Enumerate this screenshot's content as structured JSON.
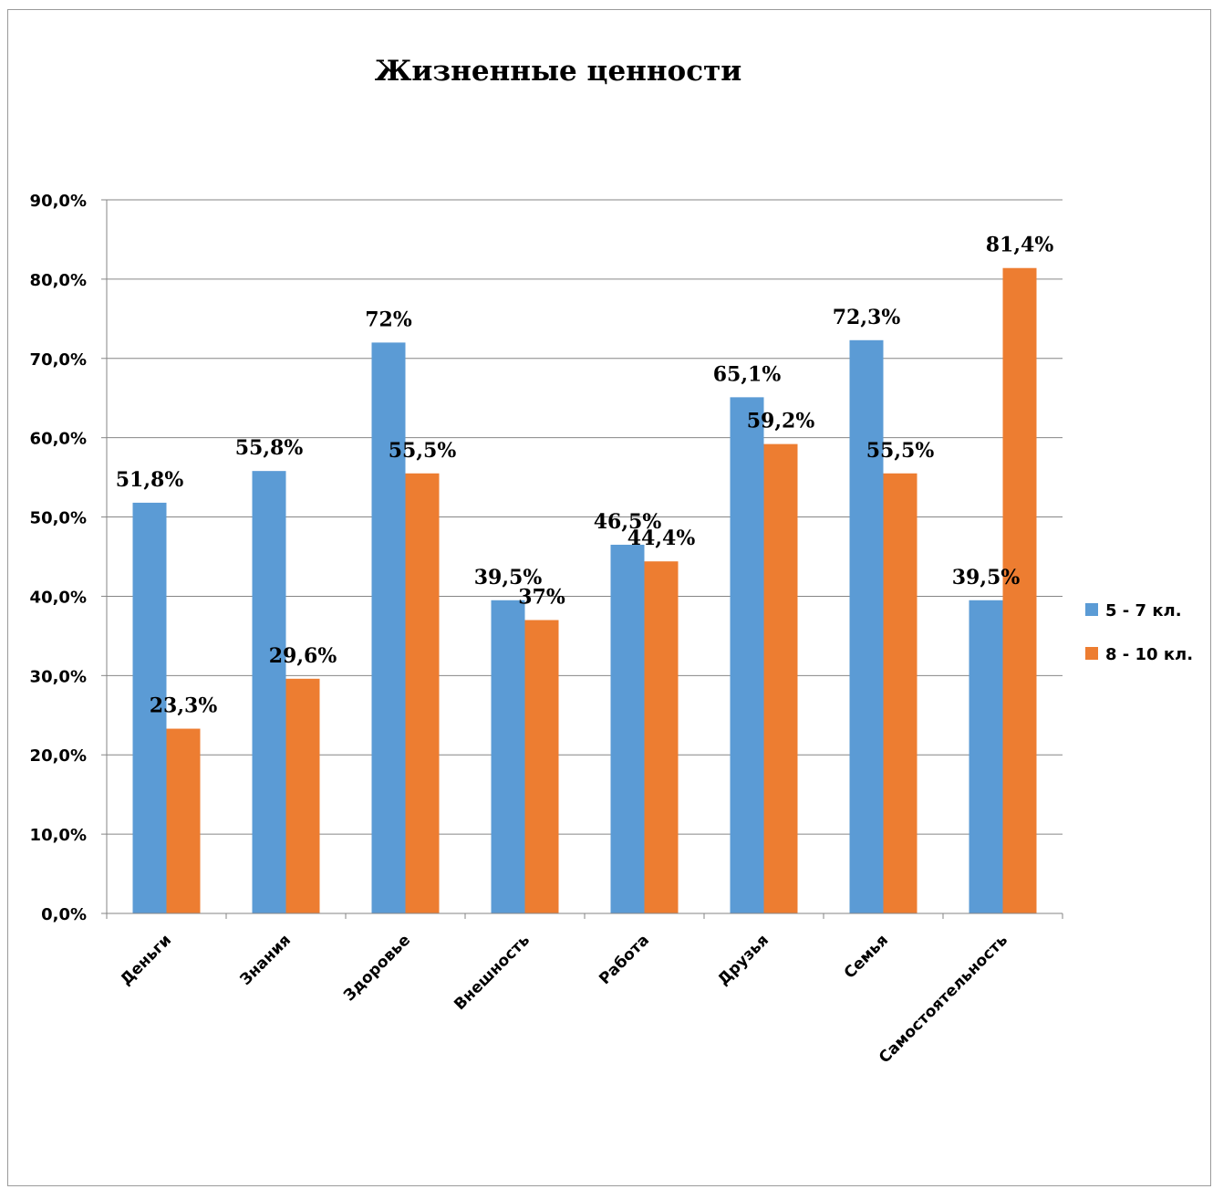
{
  "chart_data": {
    "type": "bar",
    "title": "Жизненные ценности",
    "categories": [
      "Деньги",
      "Знания",
      "Здоровье",
      "Внешность",
      "Работа",
      "Друзья",
      "Семья",
      "Самостоятельность"
    ],
    "series": [
      {
        "name": "5 - 7 кл.",
        "color": "#5B9BD5",
        "values": [
          51.8,
          55.8,
          72.0,
          39.5,
          46.5,
          65.1,
          72.3,
          39.5
        ],
        "labels": [
          "51,8%",
          "55,8%",
          "72%",
          "39,5%",
          "46,5%",
          "65,1%",
          "72,3%",
          "39,5%"
        ]
      },
      {
        "name": "8 - 10 кл.",
        "color": "#ED7D31",
        "values": [
          23.3,
          29.6,
          55.5,
          37.0,
          44.4,
          59.2,
          55.5,
          81.4
        ],
        "labels": [
          "23,3%",
          "29,6%",
          "55,5%",
          "37%",
          "44,4%",
          "59,2%",
          "55,5%",
          "81,4%"
        ]
      }
    ],
    "ylim": [
      0,
      90
    ],
    "yticks": [
      "0,0%",
      "10,0%",
      "20,0%",
      "30,0%",
      "40,0%",
      "50,0%",
      "60,0%",
      "70,0%",
      "80,0%",
      "90,0%"
    ],
    "grid": true,
    "legend": "right"
  }
}
